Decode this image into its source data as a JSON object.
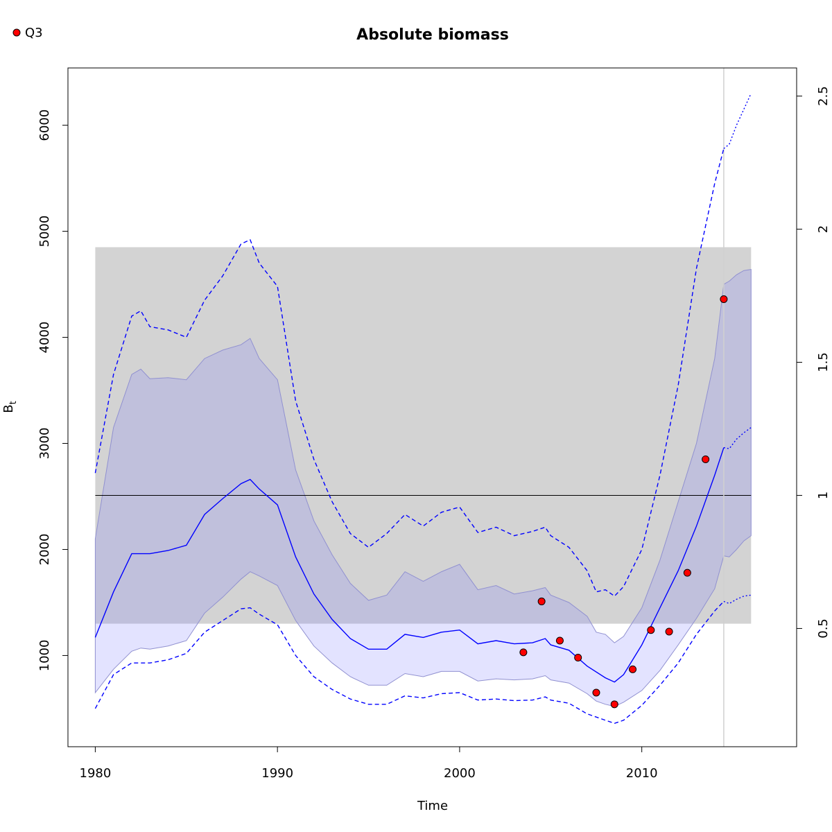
{
  "chart_data": {
    "type": "line",
    "title": "Absolute biomass",
    "xlabel": "Time",
    "ylabel": "B",
    "ylabel_sub": "t",
    "xlim": [
      1978.5,
      2018.5
    ],
    "ylim": [
      140,
      6540
    ],
    "xticks": [
      1980,
      1990,
      2000,
      2010
    ],
    "yticks": [
      1000,
      2000,
      3000,
      4000,
      5000,
      6000
    ],
    "right_axis": {
      "scale_ref": 2510,
      "ticks": [
        0.5,
        1,
        1.5,
        2,
        2.5
      ],
      "tick_labels": [
        "0.5",
        "1",
        "1.5",
        "2",
        "2.5"
      ]
    },
    "grey_band": {
      "x": [
        1980,
        2016
      ],
      "y": [
        1300,
        4850
      ],
      "color": "#d3d3d3"
    },
    "reference_line": {
      "y": 2510,
      "color": "#000000"
    },
    "vertical_marker": {
      "x": 2014.5,
      "color": "#d0d0d0"
    },
    "legend": {
      "position": "top-left",
      "entries": [
        {
          "label": "Q3",
          "color": "#ff0000"
        }
      ]
    },
    "series": [
      {
        "name": "B_est",
        "color": "#0000ff",
        "style": "solid",
        "x": [
          1980,
          1981,
          1982,
          1983,
          1984,
          1985,
          1986,
          1987,
          1988,
          1988.5,
          1989,
          1990,
          1991,
          1992,
          1993,
          1994,
          1995,
          1996,
          1997,
          1998,
          1999,
          2000,
          2001,
          2002,
          2003,
          2004,
          2004.7,
          2005,
          2006,
          2007,
          2008,
          2008.5,
          2009,
          2010,
          2011,
          2012,
          2013,
          2014,
          2014.5
        ],
        "y": [
          1170,
          1600,
          1960,
          1960,
          1990,
          2040,
          2330,
          2480,
          2620,
          2660,
          2570,
          2420,
          1930,
          1580,
          1340,
          1160,
          1060,
          1060,
          1200,
          1170,
          1220,
          1240,
          1110,
          1140,
          1110,
          1120,
          1160,
          1100,
          1050,
          900,
          790,
          750,
          820,
          1100,
          1450,
          1800,
          2220,
          2700,
          2960
        ]
      },
      {
        "name": "B_pred",
        "color": "#0000ff",
        "style": "dotted",
        "x": [
          2014.5,
          2014.8,
          2015.2,
          2015.6,
          2016
        ],
        "y": [
          2960,
          2950,
          3040,
          3100,
          3150
        ]
      },
      {
        "name": "CI95_upper",
        "color": "#0000ff",
        "style": "dashed",
        "x": [
          1980,
          1981,
          1982,
          1982.5,
          1983,
          1984,
          1985,
          1986,
          1987,
          1988,
          1988.5,
          1989,
          1990,
          1991,
          1992,
          1993,
          1994,
          1995,
          1996,
          1997,
          1998,
          1999,
          2000,
          2001,
          2002,
          2003,
          2004,
          2004.7,
          2005,
          2006,
          2007,
          2007.5,
          2008,
          2008.5,
          2009,
          2010,
          2011,
          2012,
          2013,
          2014,
          2014.5
        ],
        "y": [
          2720,
          3650,
          4200,
          4250,
          4100,
          4070,
          4000,
          4350,
          4580,
          4880,
          4920,
          4700,
          4480,
          3400,
          2850,
          2450,
          2150,
          2020,
          2150,
          2330,
          2220,
          2350,
          2400,
          2160,
          2210,
          2130,
          2170,
          2210,
          2130,
          2020,
          1800,
          1600,
          1620,
          1560,
          1650,
          2000,
          2700,
          3550,
          4650,
          5450,
          5780
        ]
      },
      {
        "name": "CI95_upper_pred",
        "color": "#0000ff",
        "style": "dotted",
        "x": [
          2014.5,
          2014.8,
          2015.2,
          2015.6,
          2016
        ],
        "y": [
          5780,
          5820,
          6000,
          6150,
          6300
        ]
      },
      {
        "name": "CI95_lower",
        "color": "#0000ff",
        "style": "dashed",
        "x": [
          1980,
          1981,
          1982,
          1983,
          1984,
          1985,
          1986,
          1987,
          1988,
          1988.5,
          1989,
          1990,
          1991,
          1992,
          1993,
          1994,
          1995,
          1996,
          1997,
          1998,
          1999,
          2000,
          2001,
          2002,
          2003,
          2004,
          2004.7,
          2005,
          2006,
          2007,
          2008,
          2008.5,
          2009,
          2010,
          2011,
          2012,
          2013,
          2014,
          2014.5
        ],
        "y": [
          500,
          820,
          930,
          930,
          960,
          1020,
          1220,
          1330,
          1440,
          1450,
          1390,
          1290,
          1000,
          800,
          680,
          590,
          540,
          540,
          620,
          600,
          640,
          650,
          580,
          590,
          575,
          580,
          610,
          580,
          550,
          450,
          390,
          360,
          390,
          530,
          720,
          930,
          1200,
          1420,
          1510
        ]
      },
      {
        "name": "CI95_lower_pred",
        "color": "#0000ff",
        "style": "dotted",
        "x": [
          2014.5,
          2014.8,
          2015.2,
          2015.6,
          2016
        ],
        "y": [
          1510,
          1490,
          1530,
          1560,
          1570
        ]
      }
    ],
    "bands": [
      {
        "name": "CI_band",
        "color": "#8080ff",
        "opacity": 0.22,
        "x": [
          1980,
          1981,
          1982,
          1982.5,
          1983,
          1984,
          1985,
          1986,
          1987,
          1988,
          1988.5,
          1989,
          1990,
          1991,
          1992,
          1993,
          1994,
          1995,
          1996,
          1997,
          1998,
          1999,
          2000,
          2001,
          2002,
          2003,
          2004,
          2004.7,
          2005,
          2006,
          2007,
          2007.5,
          2008,
          2008.5,
          2009,
          2010,
          2011,
          2012,
          2013,
          2014,
          2014.5,
          2014.8,
          2015.2,
          2015.6,
          2016
        ],
        "upper": [
          2100,
          3150,
          3650,
          3700,
          3610,
          3620,
          3600,
          3800,
          3880,
          3930,
          3990,
          3800,
          3600,
          2750,
          2270,
          1950,
          1680,
          1520,
          1570,
          1790,
          1700,
          1790,
          1860,
          1620,
          1660,
          1580,
          1610,
          1640,
          1570,
          1500,
          1370,
          1220,
          1200,
          1120,
          1180,
          1450,
          1900,
          2450,
          3000,
          3800,
          4500,
          4530,
          4590,
          4630,
          4640
        ],
        "lower": [
          650,
          870,
          1040,
          1070,
          1060,
          1090,
          1140,
          1400,
          1550,
          1720,
          1790,
          1750,
          1660,
          1330,
          1090,
          930,
          800,
          720,
          720,
          830,
          800,
          850,
          850,
          760,
          780,
          770,
          780,
          810,
          770,
          740,
          640,
          570,
          540,
          520,
          560,
          670,
          860,
          1100,
          1350,
          1630,
          1940,
          1930,
          2000,
          2080,
          2130
        ]
      }
    ],
    "points": {
      "name": "Q3",
      "color": "#ff0000",
      "x": [
        2003.5,
        2004.5,
        2005.5,
        2006.5,
        2007.5,
        2008.5,
        2009.5,
        2010.5,
        2011.5,
        2012.5,
        2013.5,
        2014.5
      ],
      "y": [
        1030,
        1510,
        1140,
        980,
        650,
        540,
        870,
        1240,
        1225,
        1780,
        2850,
        4360
      ]
    }
  }
}
